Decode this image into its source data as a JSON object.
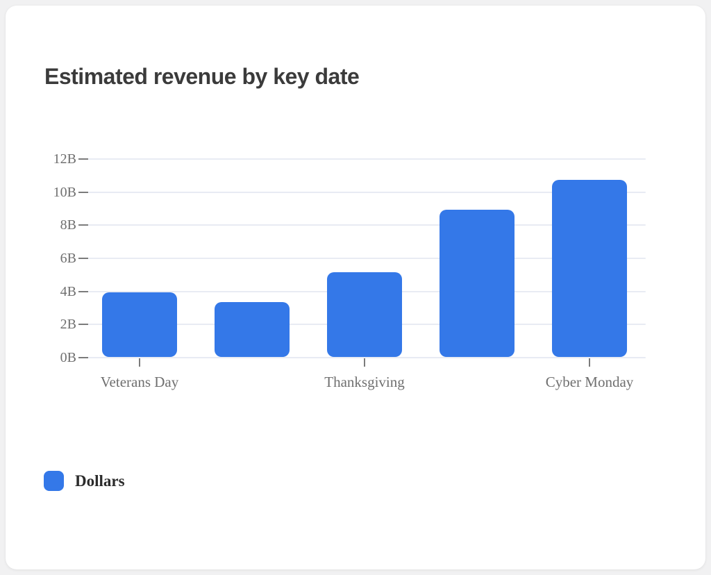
{
  "header": {
    "title": "Estimated revenue by key date"
  },
  "chart_data": {
    "type": "bar",
    "title": "Estimated revenue by key date",
    "categories": [
      "Veterans Day",
      "",
      "Thanksgiving",
      "",
      "Cyber Monday"
    ],
    "values": [
      3.9,
      3.3,
      5.1,
      8.9,
      10.7
    ],
    "values_unit": "B",
    "xlabel": "",
    "ylabel": "",
    "ylim": [
      0,
      12
    ],
    "y_ticks": [
      "0B",
      "2B",
      "4B",
      "6B",
      "8B",
      "10B",
      "12B"
    ],
    "grid": true,
    "legend": {
      "position": "bottom-left",
      "entries": [
        {
          "label": "Dollars",
          "color": "#3478e8"
        }
      ]
    }
  },
  "colors": {
    "bar": "#3478e8",
    "grid": "#e8ebf3",
    "tick": "#7b7b7b",
    "axis_text": "#6f6f6f",
    "title_text": "#3b3b3b",
    "legend_text": "#2b2b2b",
    "card_bg": "#ffffff",
    "page_bg": "#f1f1f2"
  }
}
